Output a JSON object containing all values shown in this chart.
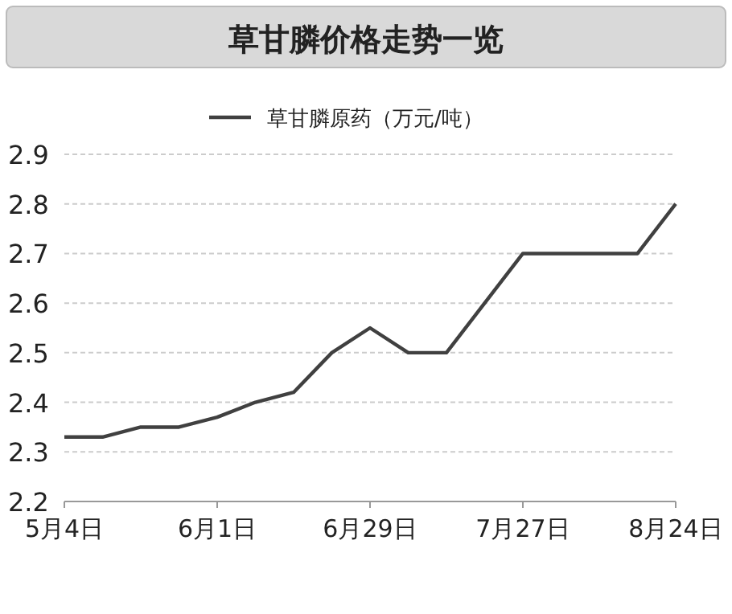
{
  "chart_data": {
    "type": "line",
    "title": "草甘膦价格走势一览",
    "categories": [
      "5月4日",
      null,
      null,
      null,
      "6月1日",
      null,
      null,
      null,
      "6月29日",
      null,
      null,
      null,
      "7月27日",
      null,
      null,
      null,
      "8月24日"
    ],
    "series": [
      {
        "name": "草甘膦原药（万元/吨）",
        "color": "#404040",
        "values": [
          2.33,
          2.33,
          2.35,
          2.35,
          2.37,
          2.4,
          2.42,
          2.5,
          2.55,
          2.5,
          2.5,
          2.6,
          2.7,
          2.7,
          2.7,
          2.7,
          2.8
        ]
      }
    ],
    "ylim": [
      2.2,
      2.9
    ],
    "yticks": [
      2.2,
      2.3,
      2.4,
      2.5,
      2.6,
      2.7,
      2.8,
      2.9
    ],
    "grid": "y",
    "legend": "top",
    "marker": "none",
    "line_style": "solid"
  }
}
